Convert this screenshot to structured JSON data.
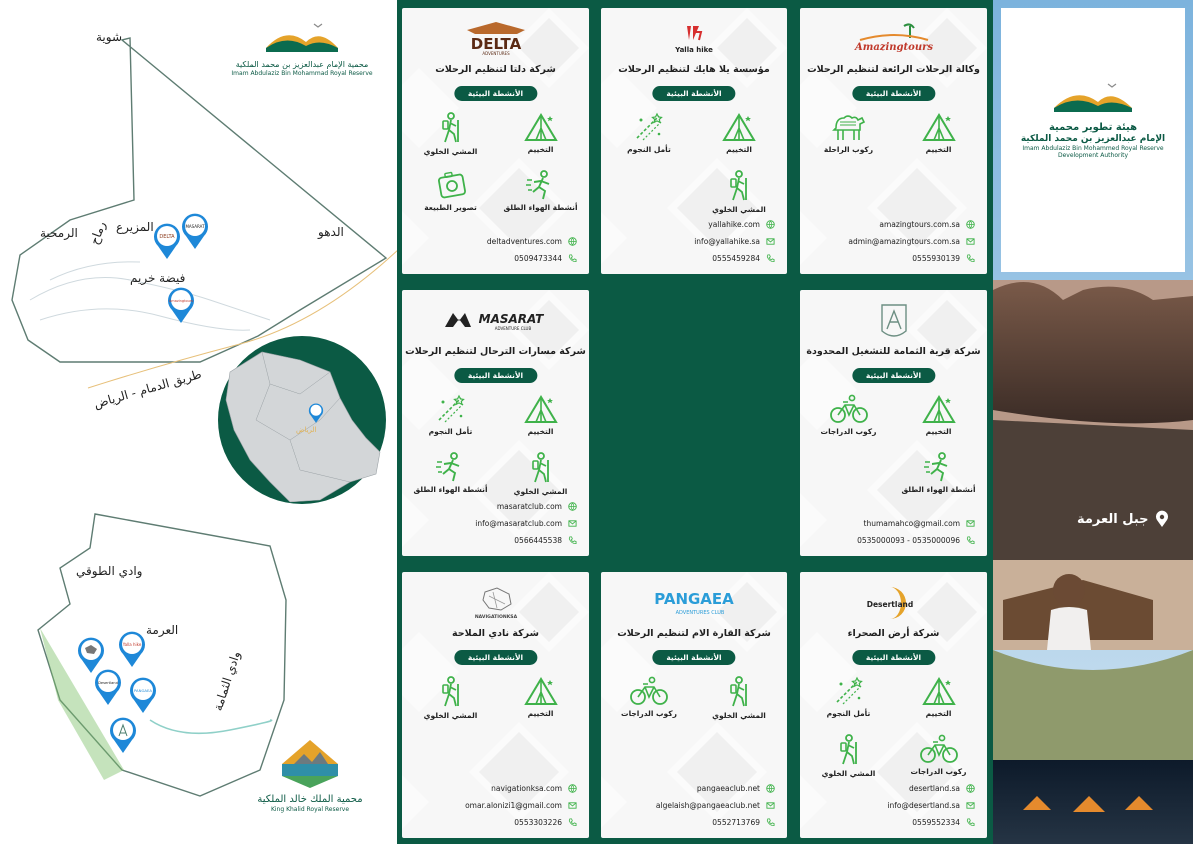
{
  "map": {
    "places": [
      "شوية",
      "الدهو",
      "الرمحية",
      "رماح",
      "المزيرع",
      "فيضة خريم",
      "طريق الدمام - الرياض",
      "الرياض",
      "وادي الطوقي",
      "العرمة",
      "وادي الثمامة"
    ],
    "pin_logos": [
      "DELTA",
      "MASARAT",
      "Amazingtours",
      "Yalla hike",
      "Desertland",
      "PANGAEA",
      "قرية الثمامة"
    ]
  },
  "logos": {
    "imam_reserve_ar": "محمية الإمام عبدالعزيز بن محمد الملكية",
    "imam_reserve_en": "Imam Abdulaziz Bin Mohammad Royal Reserve",
    "king_khalid_ar": "محمية الملك خالد الملكية",
    "king_khalid_en": "King Khalid Royal Reserve",
    "authority_ar_1": "هيئة تطوير محمية",
    "authority_ar_2": "الإمام عبدالعزيز بن محمد الملكية",
    "authority_en_1": "Imam Abdulaziz Bin Mohammed Royal Reserve",
    "authority_en_2": "Development Authority"
  },
  "pill_label": "الأنشطة البيئية",
  "activity_names": {
    "camping": "التخييم",
    "hiking": "المشي الخلوي",
    "stargazing": "تأمل النجوم",
    "outdoor": "أنشطة الهواء الطلق",
    "photo": "تصوير الطبيعة",
    "camel": "ركوب الراحلة",
    "bike": "ركوب الدراجات"
  },
  "cards": [
    {
      "id": "delta",
      "logo_text": "DELTA",
      "logo_sub": "ADVENTURES",
      "title": "شركة دلتا لتنظيم الرحلات",
      "activities": [
        "camping",
        "hiking",
        "outdoor",
        "photo"
      ],
      "contacts": [
        {
          "type": "web",
          "value": "deltadventures.com"
        },
        {
          "type": "phone",
          "value": "0509473344"
        }
      ]
    },
    {
      "id": "yalla",
      "logo_text": "Yalla hike",
      "title": "مؤسسة يلا هايك لتنظيم الرحلات",
      "activities": [
        "camping",
        "stargazing",
        "hiking"
      ],
      "contacts": [
        {
          "type": "web",
          "value": "yallahike.com"
        },
        {
          "type": "mail",
          "value": "info@yallahike.sa"
        },
        {
          "type": "phone",
          "value": "0555459284"
        }
      ]
    },
    {
      "id": "amazing",
      "logo_text": "Amazingtours",
      "title": "وكالة الرحلات الرائعة لتنظيم الرحلات",
      "activities": [
        "camping",
        "camel"
      ],
      "contacts": [
        {
          "type": "web",
          "value": "amazingtours.com.sa"
        },
        {
          "type": "mail",
          "value": "admin@amazingtours.com.sa"
        },
        {
          "type": "phone",
          "value": "0555930139"
        }
      ]
    },
    {
      "id": "masarat",
      "logo_text": "MASARAT",
      "logo_sub": "ADVENTURE CLUB",
      "title": "شركة مسارات الترحال لتنظيم الرحلات",
      "activities": [
        "camping",
        "stargazing",
        "hiking",
        "outdoor"
      ],
      "contacts": [
        {
          "type": "web",
          "value": "masaratclub.com"
        },
        {
          "type": "mail",
          "value": "info@masaratclub.com"
        },
        {
          "type": "phone",
          "value": "0566445538"
        }
      ]
    },
    {
      "id": "thumama",
      "logo_text": "",
      "title": "شركة قرية الثمامة للتشغيل المحدودة",
      "activities": [
        "camping",
        "bike",
        "outdoor"
      ],
      "contacts": [
        {
          "type": "mail",
          "value": "thumamahco@gmail.com"
        },
        {
          "type": "phone",
          "value": "0535000093 - 0535000096"
        }
      ]
    },
    {
      "id": "navigation",
      "logo_text": "NAVIGATIONKSA",
      "title": "شركة نادي الملاحة",
      "activities": [
        "camping",
        "hiking"
      ],
      "contacts": [
        {
          "type": "web",
          "value": "navigationksa.com"
        },
        {
          "type": "mail",
          "value": "omar.alonizi1@gmail.com"
        },
        {
          "type": "phone",
          "value": "0553303226"
        }
      ]
    },
    {
      "id": "pangaea",
      "logo_text": "PANGAEA",
      "logo_sub": "ADVENTURES CLUB",
      "title": "شركة القارة الام لتنظيم الرحلات",
      "activities": [
        "hiking",
        "bike"
      ],
      "contacts": [
        {
          "type": "web",
          "value": "pangaeaclub.net"
        },
        {
          "type": "mail",
          "value": "algelaish@pangaeaclub.net"
        },
        {
          "type": "phone",
          "value": "0552713769"
        }
      ]
    },
    {
      "id": "desertland",
      "logo_text": "Desertland",
      "title": "شركة أرض الصحراء",
      "activities": [
        "camping",
        "stargazing",
        "bike",
        "hiking"
      ],
      "contacts": [
        {
          "type": "web",
          "value": "desertland.sa"
        },
        {
          "type": "mail",
          "value": "info@desertland.sa"
        },
        {
          "type": "phone",
          "value": "0559552334"
        }
      ]
    }
  ],
  "right_panel": {
    "location_label": "جبل العرمة"
  },
  "colors": {
    "brand_green": "#0b5a44",
    "icon_green": "#3fb24a",
    "card_bg": "#f7f7f7",
    "pin_blue": "#1e88d8"
  }
}
